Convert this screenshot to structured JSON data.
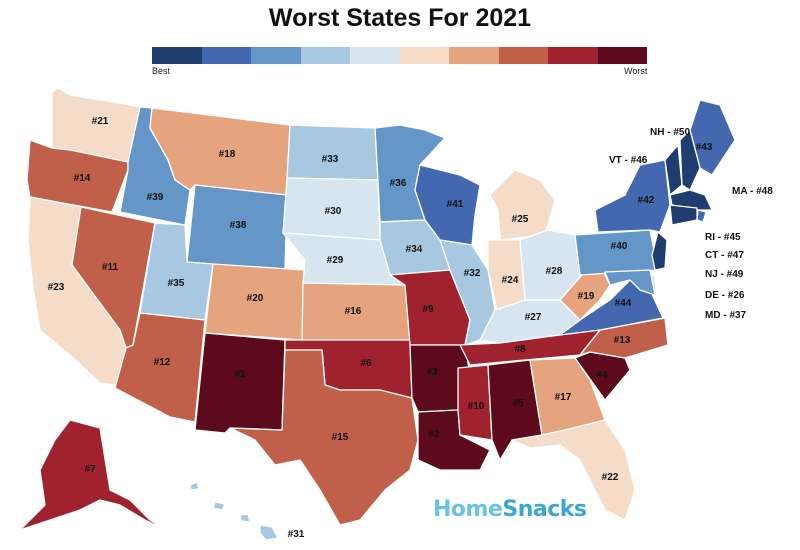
{
  "title": "Worst States For 2021",
  "legend": {
    "low_label": "Best",
    "high_label": "Worst",
    "colors": [
      "#1f3d6e",
      "#4468b0",
      "#6596c8",
      "#a8c8e2",
      "#d6e5f0",
      "#f4dcc9",
      "#e5a37e",
      "#c0604a",
      "#a0222e",
      "#5c0a1c"
    ]
  },
  "brand": {
    "part1": "Home",
    "part2": "Snacks"
  },
  "states": [
    {
      "code": "WA",
      "rank": "#21",
      "color": "#f4dcc9"
    },
    {
      "code": "OR",
      "rank": "#14",
      "color": "#c0604a"
    },
    {
      "code": "CA",
      "rank": "#23",
      "color": "#f4dcc9"
    },
    {
      "code": "NV",
      "rank": "#11",
      "color": "#c0604a"
    },
    {
      "code": "ID",
      "rank": "#39",
      "color": "#6596c8"
    },
    {
      "code": "MT",
      "rank": "#18",
      "color": "#e5a37e"
    },
    {
      "code": "WY",
      "rank": "#38",
      "color": "#6596c8"
    },
    {
      "code": "UT",
      "rank": "#35",
      "color": "#a8c8e2"
    },
    {
      "code": "AZ",
      "rank": "#12",
      "color": "#c0604a"
    },
    {
      "code": "CO",
      "rank": "#20",
      "color": "#e5a37e"
    },
    {
      "code": "NM",
      "rank": "#1",
      "color": "#5c0a1c"
    },
    {
      "code": "ND",
      "rank": "#33",
      "color": "#a8c8e2"
    },
    {
      "code": "SD",
      "rank": "#30",
      "color": "#d6e5f0"
    },
    {
      "code": "NE",
      "rank": "#29",
      "color": "#d6e5f0"
    },
    {
      "code": "KS",
      "rank": "#16",
      "color": "#e5a37e"
    },
    {
      "code": "OK",
      "rank": "#6",
      "color": "#a0222e"
    },
    {
      "code": "TX",
      "rank": "#15",
      "color": "#c0604a"
    },
    {
      "code": "MN",
      "rank": "#36",
      "color": "#6596c8"
    },
    {
      "code": "IA",
      "rank": "#34",
      "color": "#a8c8e2"
    },
    {
      "code": "MO",
      "rank": "#9",
      "color": "#a0222e"
    },
    {
      "code": "AR",
      "rank": "#3",
      "color": "#5c0a1c"
    },
    {
      "code": "LA",
      "rank": "#2",
      "color": "#5c0a1c"
    },
    {
      "code": "WI",
      "rank": "#41",
      "color": "#4468b0"
    },
    {
      "code": "IL",
      "rank": "#32",
      "color": "#a8c8e2"
    },
    {
      "code": "MI",
      "rank": "#25",
      "color": "#f4dcc9"
    },
    {
      "code": "IN",
      "rank": "#24",
      "color": "#f4dcc9"
    },
    {
      "code": "OH",
      "rank": "#28",
      "color": "#d6e5f0"
    },
    {
      "code": "KY",
      "rank": "#27",
      "color": "#d6e5f0"
    },
    {
      "code": "TN",
      "rank": "#8",
      "color": "#a0222e"
    },
    {
      "code": "MS",
      "rank": "#10",
      "color": "#a0222e"
    },
    {
      "code": "AL",
      "rank": "#5",
      "color": "#5c0a1c"
    },
    {
      "code": "GA",
      "rank": "#17",
      "color": "#e5a37e"
    },
    {
      "code": "FL",
      "rank": "#22",
      "color": "#f4dcc9"
    },
    {
      "code": "SC",
      "rank": "#4",
      "color": "#5c0a1c"
    },
    {
      "code": "NC",
      "rank": "#13",
      "color": "#c0604a"
    },
    {
      "code": "VA",
      "rank": "#44",
      "color": "#4468b0"
    },
    {
      "code": "WV",
      "rank": "#19",
      "color": "#e5a37e"
    },
    {
      "code": "PA",
      "rank": "#40",
      "color": "#6596c8"
    },
    {
      "code": "NY",
      "rank": "#42",
      "color": "#4468b0"
    },
    {
      "code": "ME",
      "rank": "#43",
      "color": "#4468b0"
    },
    {
      "code": "AK",
      "rank": "#7",
      "color": "#a0222e"
    },
    {
      "code": "HI",
      "rank": "#31",
      "color": "#a8c8e2"
    },
    {
      "code": "VT",
      "rank": "#46",
      "color": "#1f3d6e"
    },
    {
      "code": "NH",
      "rank": "#50",
      "color": "#1f3d6e"
    },
    {
      "code": "MA",
      "rank": "#48",
      "color": "#1f3d6e"
    },
    {
      "code": "RI",
      "rank": "#45",
      "color": "#4468b0"
    },
    {
      "code": "CT",
      "rank": "#47",
      "color": "#1f3d6e"
    },
    {
      "code": "NJ",
      "rank": "#49",
      "color": "#1f3d6e"
    },
    {
      "code": "DE",
      "rank": "#26",
      "color": "#d6e5f0"
    },
    {
      "code": "MD",
      "rank": "#37",
      "color": "#6596c8"
    }
  ],
  "callouts": {
    "NH": "NH - #50",
    "VT": "VT - #46",
    "MA": "MA - #48",
    "RI": "RI - #45",
    "CT": "CT - #47",
    "NJ": "NJ - #49",
    "DE": "DE - #26",
    "MD": "MD - #37"
  }
}
